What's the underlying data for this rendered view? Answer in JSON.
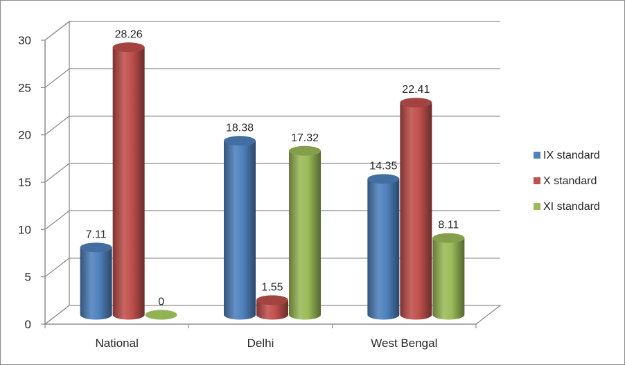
{
  "chart_data": {
    "type": "bar",
    "categories": [
      "National",
      "Delhi",
      "West Bengal"
    ],
    "series": [
      {
        "name": "IX standard",
        "values": [
          7.11,
          18.38,
          14.35
        ],
        "color": "#4F81BD"
      },
      {
        "name": "X standard",
        "values": [
          28.26,
          1.55,
          22.41
        ],
        "color": "#C0504D"
      },
      {
        "name": "XI standard",
        "values": [
          0,
          17.32,
          8.11
        ],
        "color": "#9BBB59"
      }
    ],
    "data_labels": [
      [
        "7.11",
        "28.26",
        "0"
      ],
      [
        "18.38",
        "1.55",
        "17.32"
      ],
      [
        "14.35",
        "22.41",
        "8.11"
      ]
    ],
    "yticks": [
      "0",
      "5",
      "10",
      "15",
      "20",
      "25",
      "30"
    ],
    "ylim": [
      0,
      30
    ],
    "grid": true,
    "legend_position": "right",
    "style": "3d-cylinder"
  }
}
